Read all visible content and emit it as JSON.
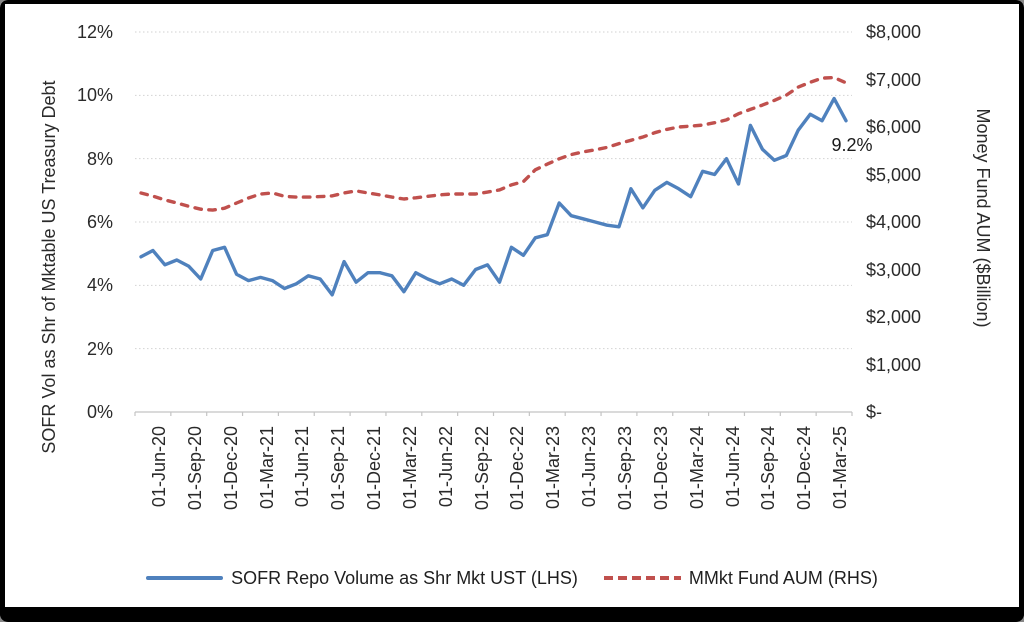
{
  "chart": {
    "left_axis_title": "SOFR Vol as Shr of Mktable US Treasury Debt",
    "right_axis_title": "Money Fund AUM ($Billion)",
    "colors": {
      "series1": "#4F81BD",
      "series2": "#C0504D",
      "gridline": "#d2d2d2",
      "axis_line": "#c4c4c4",
      "text": "#262626",
      "frame": "#000000"
    }
  },
  "chart_data": {
    "type": "line",
    "title": "",
    "legend_position": "bottom",
    "gridlines": "horizontal dotted",
    "categories": [
      "01-Jun-20",
      "01-Jul-20",
      "01-Aug-20",
      "01-Sep-20",
      "01-Oct-20",
      "01-Nov-20",
      "01-Dec-20",
      "01-Jan-21",
      "01-Feb-21",
      "01-Mar-21",
      "01-Apr-21",
      "01-May-21",
      "01-Jun-21",
      "01-Jul-21",
      "01-Aug-21",
      "01-Sep-21",
      "01-Oct-21",
      "01-Nov-21",
      "01-Dec-21",
      "01-Jan-22",
      "01-Feb-22",
      "01-Mar-22",
      "01-Apr-22",
      "01-May-22",
      "01-Jun-22",
      "01-Jul-22",
      "01-Aug-22",
      "01-Sep-22",
      "01-Oct-22",
      "01-Nov-22",
      "01-Dec-22",
      "01-Jan-23",
      "01-Feb-23",
      "01-Mar-23",
      "01-Apr-23",
      "01-May-23",
      "01-Jun-23",
      "01-Jul-23",
      "01-Aug-23",
      "01-Sep-23",
      "01-Oct-23",
      "01-Nov-23",
      "01-Dec-23",
      "01-Jan-24",
      "01-Feb-24",
      "01-Mar-24",
      "01-Apr-24",
      "01-May-24",
      "01-Jun-24",
      "01-Jul-24",
      "01-Aug-24",
      "01-Sep-24",
      "01-Oct-24",
      "01-Nov-24",
      "01-Dec-24",
      "01-Jan-25",
      "01-Feb-25",
      "01-Mar-25",
      "01-Apr-25",
      "01-May-25"
    ],
    "x_tick_labels_visible": [
      "01-Jun-20",
      "01-Sep-20",
      "01-Dec-20",
      "01-Mar-21",
      "01-Jun-21",
      "01-Sep-21",
      "01-Dec-21",
      "01-Mar-22",
      "01-Jun-22",
      "01-Sep-22",
      "01-Dec-22",
      "01-Mar-23",
      "01-Jun-23",
      "01-Sep-23",
      "01-Dec-23",
      "01-Mar-24",
      "01-Jun-24",
      "01-Sep-24",
      "01-Dec-24",
      "01-Mar-25"
    ],
    "x_tick_interval_months": 3,
    "left_axis": {
      "label": "SOFR Vol as Shr of Mktable US Treasury Debt",
      "min": 0,
      "max": 12,
      "unit": "%",
      "tick_labels": [
        "0%",
        "2%",
        "4%",
        "6%",
        "8%",
        "10%",
        "12%"
      ]
    },
    "right_axis": {
      "label": "Money Fund AUM ($Billion)",
      "min": 0,
      "max": 8000,
      "unit": "$Billion",
      "tick_labels": [
        "$-",
        "$1,000",
        "$2,000",
        "$3,000",
        "$4,000",
        "$5,000",
        "$6,000",
        "$7,000",
        "$8,000"
      ]
    },
    "series": [
      {
        "name": "SOFR Repo Volume as Shr Mkt UST (LHS)",
        "axis": "left",
        "color": "#4F81BD",
        "line_style": "solid",
        "values": [
          4.9,
          5.1,
          4.65,
          4.8,
          4.6,
          4.2,
          5.1,
          5.2,
          4.35,
          4.15,
          4.25,
          4.15,
          3.9,
          4.05,
          4.3,
          4.2,
          3.7,
          4.75,
          4.1,
          4.4,
          4.4,
          4.3,
          3.8,
          4.4,
          4.2,
          4.05,
          4.2,
          4.0,
          4.5,
          4.65,
          4.1,
          5.2,
          4.95,
          5.5,
          5.6,
          6.6,
          6.2,
          6.1,
          6.0,
          5.9,
          5.85,
          7.05,
          6.45,
          7.0,
          7.25,
          7.05,
          6.8,
          7.6,
          7.5,
          8.0,
          7.2,
          9.05,
          8.3,
          7.95,
          8.1,
          8.9,
          9.4,
          9.2,
          9.9,
          9.2
        ]
      },
      {
        "name": "MMkt Fund AUM (RHS)",
        "axis": "right",
        "color": "#C0504D",
        "line_style": "dashed",
        "values": [
          4610,
          4545,
          4465,
          4400,
          4330,
          4270,
          4250,
          4290,
          4400,
          4505,
          4590,
          4610,
          4540,
          4525,
          4525,
          4535,
          4550,
          4610,
          4655,
          4610,
          4570,
          4525,
          4485,
          4510,
          4540,
          4570,
          4590,
          4590,
          4590,
          4630,
          4675,
          4780,
          4850,
          5100,
          5220,
          5330,
          5420,
          5475,
          5520,
          5570,
          5650,
          5720,
          5790,
          5880,
          5950,
          6000,
          6020,
          6040,
          6090,
          6150,
          6280,
          6370,
          6460,
          6560,
          6670,
          6840,
          6940,
          7030,
          7040,
          6930
        ]
      }
    ],
    "annotations": [
      {
        "text": "9.2%",
        "series": "SOFR Repo Volume as Shr Mkt UST (LHS)",
        "category": "01-May-25"
      }
    ]
  }
}
